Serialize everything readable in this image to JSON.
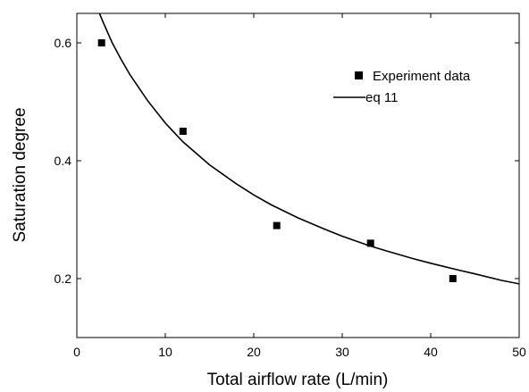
{
  "chart_data": {
    "type": "scatter",
    "title": "",
    "xlabel": "Total airflow rate (L/min)",
    "ylabel": "Saturation degree",
    "xlim": [
      0,
      50
    ],
    "ylim": [
      0.1,
      0.65
    ],
    "x_ticks": [
      0,
      10,
      20,
      30,
      40,
      50
    ],
    "x_tick_labels": [
      "0",
      "10",
      "20",
      "30",
      "40",
      "50"
    ],
    "y_ticks": [
      0.2,
      0.4,
      0.6
    ],
    "y_tick_labels": [
      "0.2",
      "0.4",
      "0.6"
    ],
    "grid": false,
    "legend_position": "top-right",
    "series": [
      {
        "name": "Experiment data",
        "kind": "scatter",
        "marker": "square",
        "color": "#000000",
        "x": [
          2.8,
          12.0,
          22.6,
          33.2,
          42.5
        ],
        "y": [
          0.6,
          0.45,
          0.29,
          0.26,
          0.2
        ]
      },
      {
        "name": "eq 11",
        "kind": "line",
        "color": "#000000",
        "x": [
          1.5,
          2,
          3,
          4,
          5,
          6,
          8,
          10,
          12,
          15,
          18,
          20,
          22,
          25,
          28,
          30,
          33,
          35,
          38,
          40,
          43,
          45,
          48,
          50
        ],
        "y": [
          0.688,
          0.67,
          0.634,
          0.6,
          0.572,
          0.546,
          0.502,
          0.464,
          0.432,
          0.393,
          0.361,
          0.342,
          0.325,
          0.303,
          0.284,
          0.272,
          0.256,
          0.247,
          0.234,
          0.226,
          0.215,
          0.208,
          0.197,
          0.191
        ]
      }
    ]
  }
}
